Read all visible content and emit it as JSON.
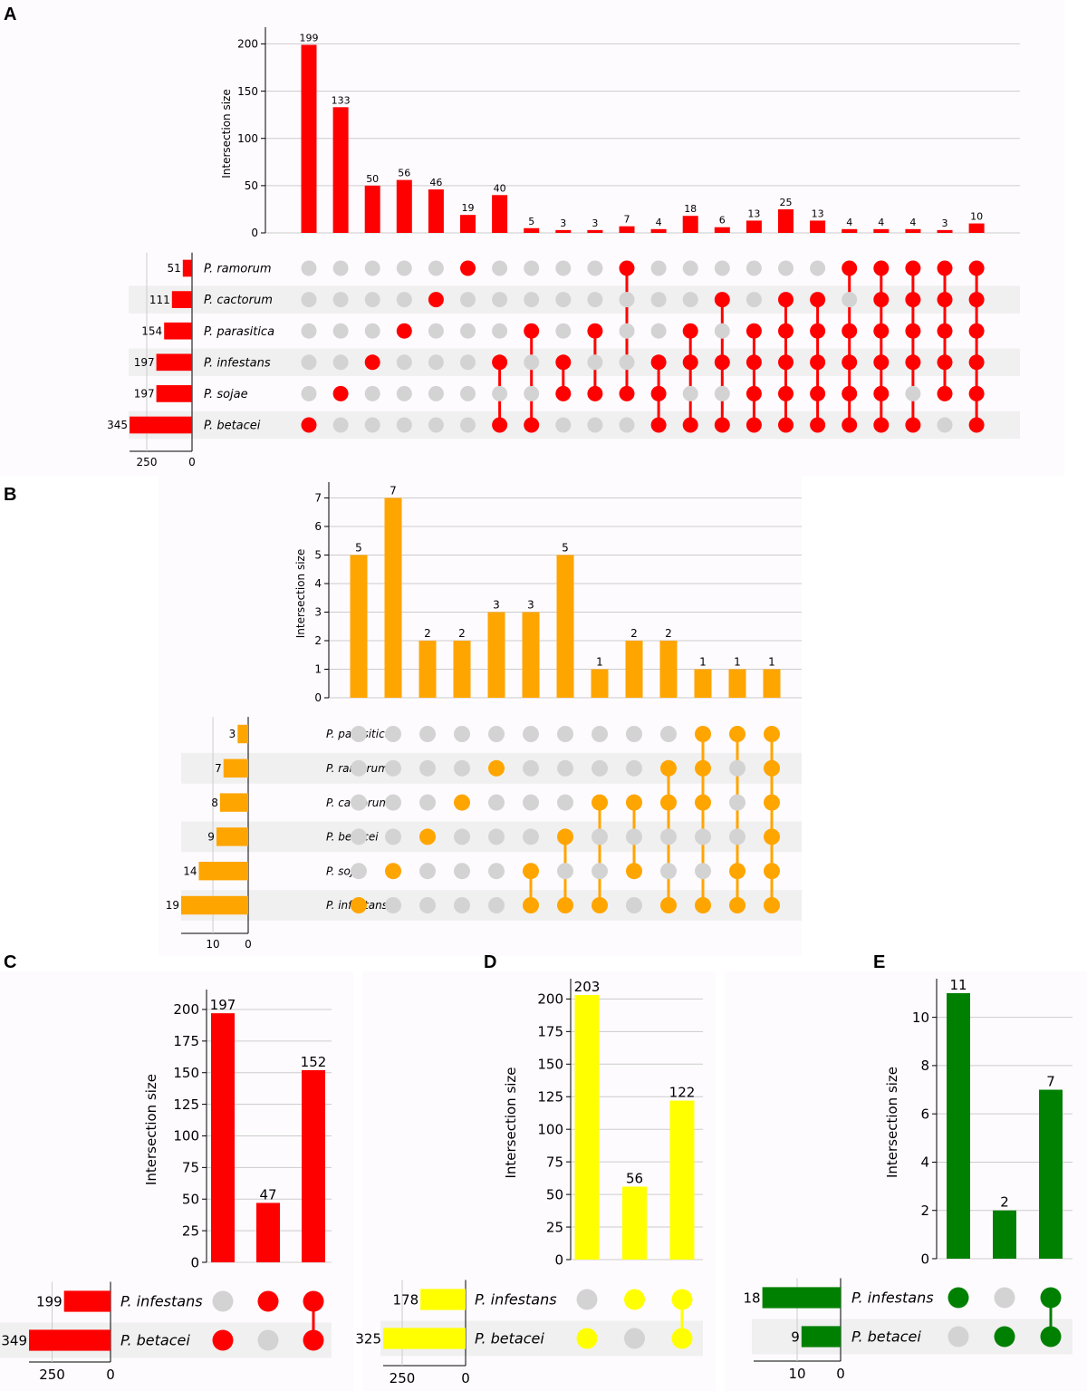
{
  "chart_data": [
    {
      "type": "upset",
      "panel": "A",
      "color": "#ff0000",
      "ylabel": "Intersection size",
      "yticks": [
        0,
        50,
        100,
        150,
        200
      ],
      "ylim": [
        0,
        210
      ],
      "size_ticks": [
        "250",
        "0"
      ],
      "sets": [
        {
          "name": "P. ramorum",
          "size": 51
        },
        {
          "name": "P. cactorum",
          "size": 111
        },
        {
          "name": "P. parasitica",
          "size": 154
        },
        {
          "name": "P. infestans",
          "size": 197
        },
        {
          "name": "P. sojae",
          "size": 197
        },
        {
          "name": "P. betacei",
          "size": 345
        }
      ],
      "intersections": [
        {
          "value": 199,
          "members": [
            5
          ]
        },
        {
          "value": 133,
          "members": [
            4
          ]
        },
        {
          "value": 50,
          "members": [
            3
          ]
        },
        {
          "value": 56,
          "members": [
            2
          ]
        },
        {
          "value": 46,
          "members": [
            1
          ]
        },
        {
          "value": 19,
          "members": [
            0
          ]
        },
        {
          "value": 40,
          "members": [
            3,
            5
          ]
        },
        {
          "value": 5,
          "members": [
            2,
            5
          ]
        },
        {
          "value": 3,
          "members": [
            3,
            4
          ]
        },
        {
          "value": 3,
          "members": [
            2,
            4
          ]
        },
        {
          "value": 7,
          "members": [
            0,
            4
          ]
        },
        {
          "value": 4,
          "members": [
            3,
            4,
            5
          ]
        },
        {
          "value": 18,
          "members": [
            2,
            3,
            5
          ]
        },
        {
          "value": 6,
          "members": [
            1,
            3,
            5
          ]
        },
        {
          "value": 13,
          "members": [
            2,
            3,
            4,
            5
          ]
        },
        {
          "value": 25,
          "members": [
            1,
            2,
            3,
            4,
            5
          ]
        },
        {
          "value": 13,
          "members": [
            1,
            2,
            3,
            4,
            5
          ]
        },
        {
          "value": 4,
          "members": [
            0,
            2,
            3,
            4,
            5
          ]
        },
        {
          "value": 4,
          "members": [
            0,
            1,
            2,
            3,
            4,
            5
          ]
        },
        {
          "value": 4,
          "members": [
            0,
            1,
            2,
            3,
            5
          ]
        },
        {
          "value": 3,
          "members": [
            0,
            1,
            2,
            3,
            4
          ]
        },
        {
          "value": 10,
          "members": [
            0,
            1,
            2,
            3,
            4,
            5
          ]
        }
      ]
    },
    {
      "type": "upset",
      "panel": "B",
      "color": "#ffa500",
      "ylabel": "Intersection size",
      "yticks": [
        0,
        1,
        2,
        3,
        4,
        5,
        6,
        7
      ],
      "ylim": [
        0,
        7.3
      ],
      "size_ticks": [
        "10",
        "0"
      ],
      "sets": [
        {
          "name": "P. parasitica",
          "size": 3
        },
        {
          "name": "P. ramorum",
          "size": 7
        },
        {
          "name": "P. cactorum",
          "size": 8
        },
        {
          "name": "P. betacei",
          "size": 9
        },
        {
          "name": "P. sojae",
          "size": 14
        },
        {
          "name": "P. infestans",
          "size": 19
        }
      ],
      "intersections": [
        {
          "value": 5,
          "members": [
            5
          ]
        },
        {
          "value": 7,
          "members": [
            4
          ]
        },
        {
          "value": 2,
          "members": [
            3
          ]
        },
        {
          "value": 2,
          "members": [
            2
          ]
        },
        {
          "value": 3,
          "members": [
            1
          ]
        },
        {
          "value": 3,
          "members": [
            4,
            5
          ]
        },
        {
          "value": 5,
          "members": [
            3,
            5
          ]
        },
        {
          "value": 1,
          "members": [
            2,
            5
          ]
        },
        {
          "value": 2,
          "members": [
            2,
            4
          ]
        },
        {
          "value": 2,
          "members": [
            1,
            2,
            5
          ]
        },
        {
          "value": 1,
          "members": [
            0,
            1,
            2,
            5
          ]
        },
        {
          "value": 1,
          "members": [
            0,
            4,
            5
          ]
        },
        {
          "value": 1,
          "members": [
            0,
            1,
            2,
            3,
            4,
            5
          ]
        }
      ]
    },
    {
      "type": "upset",
      "panel": "C",
      "color": "#ff0000",
      "ylabel": "Intersection size",
      "yticks": [
        0,
        25,
        50,
        75,
        100,
        125,
        150,
        175,
        200
      ],
      "ylim": [
        0,
        210
      ],
      "size_ticks": [
        "250",
        "0"
      ],
      "sets": [
        {
          "name": "P. infestans",
          "size": 199
        },
        {
          "name": "P. betacei",
          "size": 349
        }
      ],
      "intersections": [
        {
          "value": 197,
          "members": [
            1
          ]
        },
        {
          "value": 47,
          "members": [
            0
          ]
        },
        {
          "value": 152,
          "members": [
            0,
            1
          ]
        }
      ]
    },
    {
      "type": "upset",
      "panel": "D",
      "color": "#ffff00",
      "ylabel": "Intersection size",
      "yticks": [
        0,
        25,
        50,
        75,
        100,
        125,
        150,
        175,
        200
      ],
      "ylim": [
        0,
        210
      ],
      "size_ticks": [
        "250",
        "0"
      ],
      "sets": [
        {
          "name": "P. infestans",
          "size": 178
        },
        {
          "name": "P. betacei",
          "size": 325
        }
      ],
      "intersections": [
        {
          "value": 203,
          "members": [
            1
          ]
        },
        {
          "value": 56,
          "members": [
            0
          ]
        },
        {
          "value": 122,
          "members": [
            0,
            1
          ]
        }
      ]
    },
    {
      "type": "upset",
      "panel": "E",
      "color": "#008000",
      "ylabel": "Intersection size",
      "yticks": [
        0,
        2,
        4,
        6,
        8,
        10
      ],
      "ylim": [
        0,
        11.3
      ],
      "size_ticks": [
        "10",
        "0"
      ],
      "sets": [
        {
          "name": "P. infestans",
          "size": 18
        },
        {
          "name": "P. betacei",
          "size": 9
        }
      ],
      "intersections": [
        {
          "value": 11,
          "members": [
            0
          ]
        },
        {
          "value": 2,
          "members": [
            1
          ]
        },
        {
          "value": 7,
          "members": [
            0,
            1
          ]
        }
      ]
    }
  ]
}
